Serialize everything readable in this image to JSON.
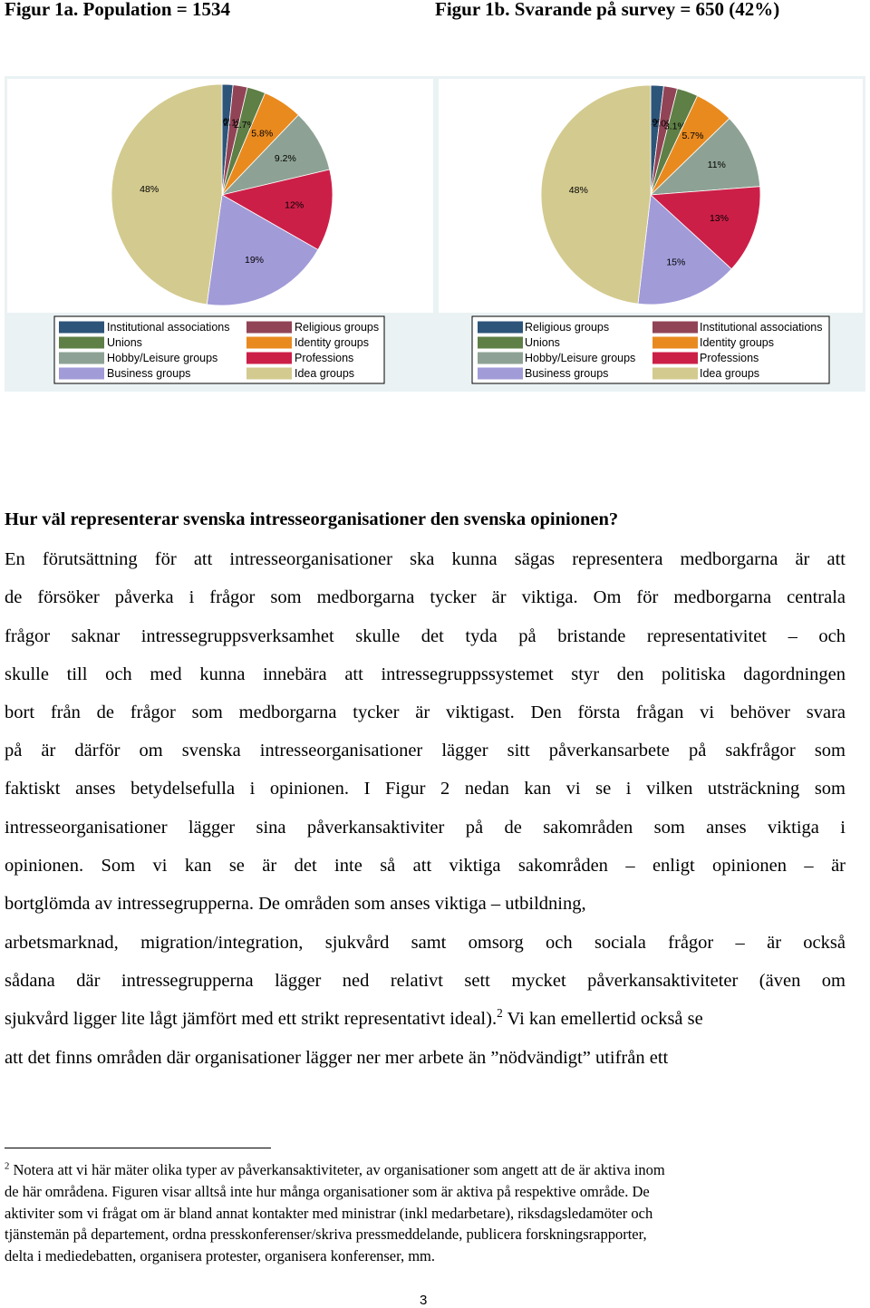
{
  "chart_data": [
    {
      "type": "pie",
      "title": "Figur 1a. Population = 1534",
      "categories": [
        "Institutional associations",
        "Religious groups",
        "Unions",
        "Identity groups",
        "Hobby/Leisure groups",
        "Professions",
        "Business groups",
        "Idea groups"
      ],
      "values": [
        1.6,
        2.1,
        2.7,
        5.8,
        9.2,
        12,
        19,
        48
      ],
      "value_labels": [
        "1.6%",
        "2.1%",
        "2.7%",
        "5.8%",
        "9.2%",
        "12%",
        "19%",
        "48%"
      ],
      "colors": [
        "#2d5479",
        "#914455",
        "#5e7f46",
        "#e98a1f",
        "#8da294",
        "#cc1f48",
        "#a19bd8",
        "#d3ca8f"
      ],
      "legend": "bottom"
    },
    {
      "type": "pie",
      "title": "Figur 1b. Svarande på survey = 650 (42%)",
      "categories": [
        "Religious groups",
        "Institutional associations",
        "Unions",
        "Identity groups",
        "Hobby/Leisure groups",
        "Professions",
        "Business groups",
        "Idea groups"
      ],
      "values": [
        1.9,
        2.0,
        3.1,
        5.7,
        11,
        13,
        15,
        48
      ],
      "value_labels": [
        "1.9%",
        "2.0%",
        "3.1%",
        "5.7%",
        "11%",
        "13%",
        "15%",
        "48%"
      ],
      "colors": [
        "#2d5479",
        "#914455",
        "#5e7f46",
        "#e98a1f",
        "#8da294",
        "#cc1f48",
        "#a19bd8",
        "#d3ca8f"
      ],
      "legend": "bottom"
    }
  ],
  "document": {
    "heading": "Hur väl representerar svenska intresseorganisationer den svenska opinionen?",
    "body_lines": [
      "En förutsättning för att intresseorganisationer ska kunna sägas representera medborgarna är att",
      "de försöker påverka i frågor som medborgarna tycker är viktiga. Om för medborgarna centrala",
      "frågor saknar intressegruppsverksamhet skulle det tyda på bristande representativitet – och",
      "skulle till och med kunna innebära att intressegruppssystemet styr den politiska dagordningen",
      "bort från de frågor som medborgarna tycker är viktigast. Den första frågan vi behöver svara",
      "på är därför om svenska intresseorganisationer lägger sitt påverkansarbete på sakfrågor som",
      "faktiskt anses betydelsefulla i opinionen. I Figur 2 nedan kan vi se i vilken utsträckning som",
      "intresseorganisationer lägger sina påverkansaktiviter på de sakområden som anses viktiga i",
      "opinionen. Som vi kan se är det inte så att viktiga sakområden – enligt opinionen – är",
      "bortglömda av intressegrupperna. De områden som anses viktiga – utbildning,",
      "arbetsmarknad, migration/integration, sjukvård samt omsorg och sociala frågor – är också",
      "sådana där intressegrupperna lägger ned relativt sett mycket påverkansaktiviteter (även om",
      {
        "text": "sjukvård ligger lite lågt jämfört med ett strikt representativt ideal).",
        "footnote_mark": "2",
        "continuation": "Vi kan emellertid också se"
      },
      "att det finns områden där organisationer lägger ner mer arbete än ”nödvändigt” utifrån ett"
    ],
    "footnote": {
      "mark": "2",
      "lines": [
        "Notera att vi här mäter olika typer av påverkansaktiviteter, av organisationer som angett att de är aktiva inom",
        "de här områdena. Figuren visar alltså inte hur många organisationer som är aktiva på respektive område. De",
        "aktiviter som vi frågat om är bland annat kontakter med ministrar (inkl medarbetare), riksdagsledamöter och",
        "tjänstemän på departement, ordna presskonferenser/skriva pressmeddelande, publicera forskningsrapporter,",
        "delta i mediedebatten, organisera protester, organisera konferenser, mm."
      ]
    },
    "page_number": "3"
  }
}
